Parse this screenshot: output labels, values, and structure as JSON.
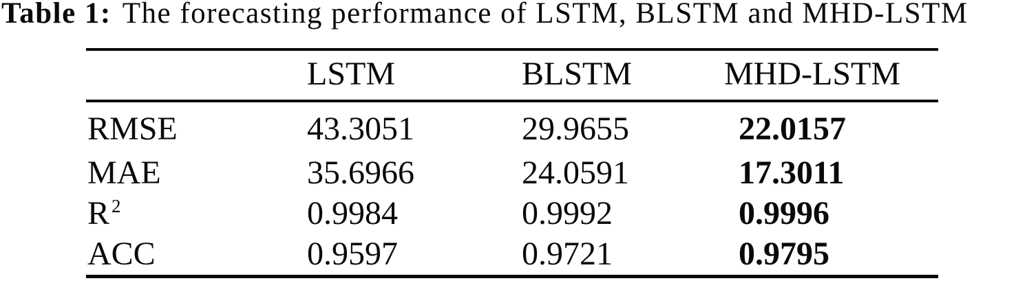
{
  "caption": {
    "label": "Table 1:",
    "text": "The forecasting performance of LSTM, BLSTM and MHD-LSTM"
  },
  "table": {
    "column_headers": [
      "LSTM",
      "BLSTM",
      "MHD-LSTM"
    ],
    "rows": [
      {
        "metric": "RMSE",
        "metric_sup": "",
        "values": [
          "43.3051",
          "29.9655",
          "22.0157"
        ]
      },
      {
        "metric": "MAE",
        "metric_sup": "",
        "values": [
          "35.6966",
          "24.0591",
          "17.3011"
        ]
      },
      {
        "metric": "R",
        "metric_sup": "2",
        "values": [
          "0.9984",
          "0.9992",
          "0.9996"
        ]
      },
      {
        "metric": "ACC",
        "metric_sup": "",
        "values": [
          "0.9597",
          "0.9721",
          "0.9795"
        ]
      }
    ],
    "bold_column": "MHD-LSTM",
    "colors": {
      "text": "#0a0a0a",
      "background": "#ffffff"
    }
  }
}
